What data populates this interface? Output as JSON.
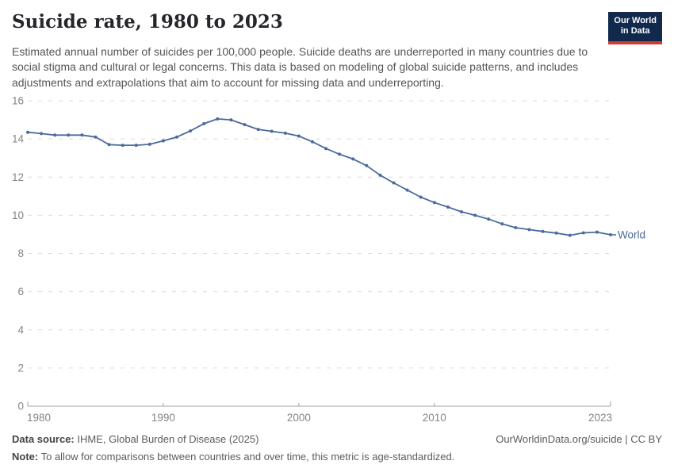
{
  "header": {
    "title": "Suicide rate, 1980 to 2023",
    "logo": {
      "line1": "Our World",
      "line2": "in Data"
    }
  },
  "subtitle": "Estimated annual number of suicides per 100,000 people. Suicide deaths are underreported in many countries due to social stigma and cultural or legal concerns. This data is based on modeling of global suicide patterns, and includes adjustments and extrapolations that aim to account for missing data and underreporting.",
  "chart_data": {
    "type": "line",
    "title": "Suicide rate, 1980 to 2023",
    "ylabel": "Suicides per 100,000 people",
    "xlim": [
      1980,
      2023
    ],
    "ylim": [
      0,
      16
    ],
    "grid": "horizontal-dashed",
    "yticks": [
      0,
      2,
      4,
      6,
      8,
      10,
      12,
      14,
      16
    ],
    "xticks": [
      {
        "year": 1980,
        "label": "1980",
        "anchor": "start",
        "tick": false
      },
      {
        "year": 1990,
        "label": "1990",
        "anchor": "middle",
        "tick": true
      },
      {
        "year": 2000,
        "label": "2000",
        "anchor": "middle",
        "tick": true
      },
      {
        "year": 2010,
        "label": "2010",
        "anchor": "middle",
        "tick": true
      },
      {
        "year": 2023,
        "label": "2023",
        "anchor": "end",
        "tick": false
      }
    ],
    "series": [
      {
        "name": "World",
        "color": "#4C6A9C",
        "x": [
          1980,
          1981,
          1982,
          1983,
          1984,
          1985,
          1986,
          1987,
          1988,
          1989,
          1990,
          1991,
          1992,
          1993,
          1994,
          1995,
          1996,
          1997,
          1998,
          1999,
          2000,
          2001,
          2002,
          2003,
          2004,
          2005,
          2006,
          2007,
          2008,
          2009,
          2010,
          2011,
          2012,
          2013,
          2014,
          2015,
          2016,
          2017,
          2018,
          2019,
          2020,
          2021,
          2022,
          2023
        ],
        "values": [
          14.35,
          14.28,
          14.2,
          14.2,
          14.2,
          14.1,
          13.7,
          13.67,
          13.67,
          13.72,
          13.9,
          14.1,
          14.42,
          14.8,
          15.05,
          15.0,
          14.75,
          14.5,
          14.4,
          14.3,
          14.15,
          13.85,
          13.5,
          13.2,
          12.95,
          12.6,
          12.1,
          11.7,
          11.32,
          10.95,
          10.67,
          10.43,
          10.18,
          10.0,
          9.8,
          9.55,
          9.35,
          9.25,
          9.15,
          9.07,
          8.95,
          9.08,
          9.12,
          8.98
        ]
      }
    ],
    "end_label": "World",
    "legend_position": "end-of-line"
  },
  "footer": {
    "source_prefix": "Data source:",
    "source_text": " IHME, Global Burden of Disease (2025)",
    "license": "OurWorldinData.org/suicide | CC BY",
    "note_prefix": "Note:",
    "note_text": " To allow for comparisons between countries and over time, this metric is age-standardized."
  },
  "colors": {
    "line": "#4C6A9C",
    "grid": "#dcdcdc",
    "axis": "#a3a3a3",
    "tick_label": "#858585",
    "title": "#24262b",
    "subtitle": "#555555",
    "logo_bg": "#12294E",
    "logo_red": "#D13B32"
  }
}
